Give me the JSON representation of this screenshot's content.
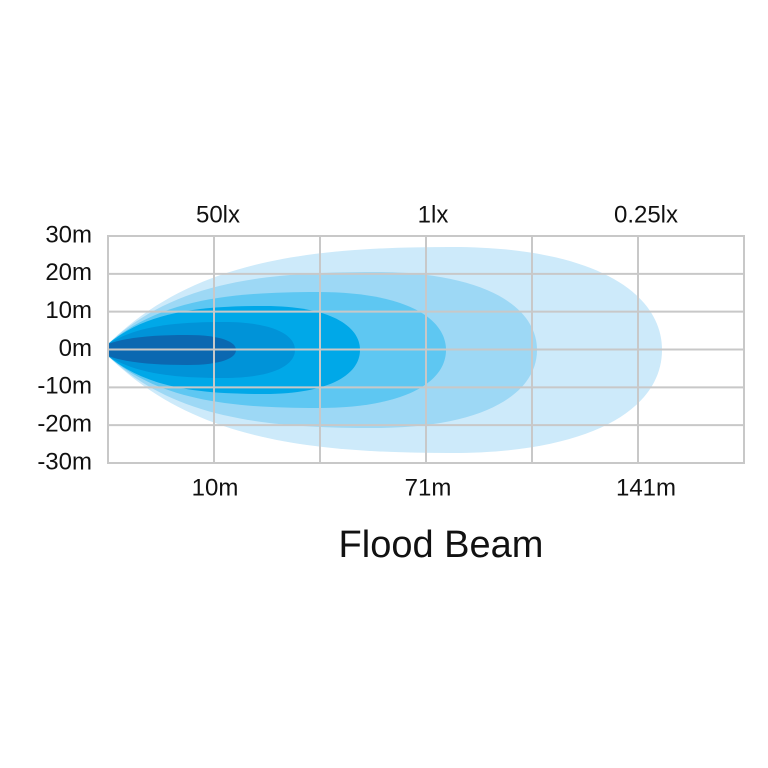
{
  "title": "Flood Beam",
  "y_labels": [
    "30m",
    "20m",
    "10m",
    "0m",
    "-10m",
    "-20m",
    "-30m"
  ],
  "top_labels": [
    "50lx",
    "1lx",
    "0.25lx"
  ],
  "bottom_labels": [
    "10m",
    "71m",
    "141m"
  ]
}
